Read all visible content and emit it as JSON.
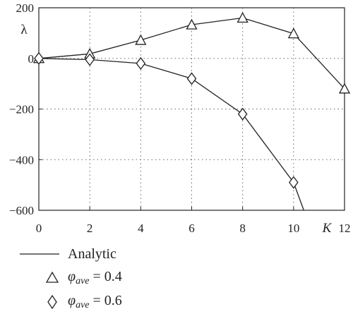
{
  "chart_data": {
    "type": "line",
    "title": "",
    "xlabel": "K",
    "ylabel": "λ",
    "xlim": [
      0,
      12
    ],
    "ylim": [
      -600,
      200
    ],
    "x_ticks": [
      "0",
      "2",
      "4",
      "6",
      "8",
      "10",
      "12"
    ],
    "y_ticks": [
      "200",
      "0",
      "−200",
      "−400",
      "−600"
    ],
    "grid": "dotted",
    "legend_position": "below",
    "series": [
      {
        "name": "Analytic",
        "style": "solid-line",
        "segments": [
          [
            [
              0,
              0
            ],
            [
              2,
              18
            ],
            [
              4,
              72
            ],
            [
              6,
              133
            ],
            [
              8,
              160
            ],
            [
              10,
              98
            ],
            [
              12,
              -120
            ]
          ],
          [
            [
              0,
              0
            ],
            [
              2,
              -5
            ],
            [
              4,
              -20
            ],
            [
              6,
              -80
            ],
            [
              8,
              -220
            ],
            [
              10,
              -490
            ],
            [
              10.4,
              -600
            ]
          ]
        ]
      },
      {
        "name": "φave = 0.4",
        "marker": "triangle",
        "x": [
          0,
          2,
          4,
          6,
          8,
          10,
          12
        ],
        "y": [
          0,
          18,
          72,
          133,
          160,
          98,
          -120
        ]
      },
      {
        "name": "φave = 0.6",
        "marker": "diamond",
        "x": [
          0,
          2,
          4,
          6,
          8,
          10
        ],
        "y": [
          0,
          -5,
          -20,
          -80,
          -220,
          -490
        ]
      }
    ]
  },
  "legend": {
    "analytic": "Analytic",
    "phi_symbol": "φ",
    "phi_sub": "ave",
    "phi_04_value": " = 0.4",
    "phi_06_value": " = 0.6"
  }
}
